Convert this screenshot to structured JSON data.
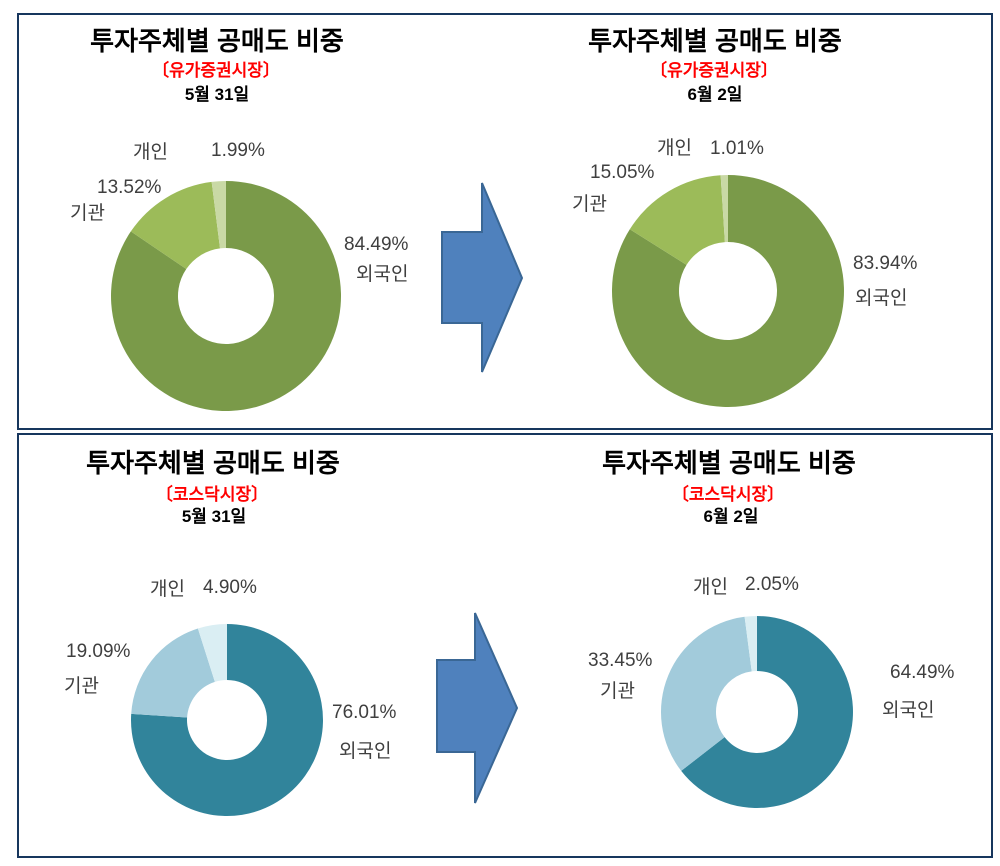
{
  "page": {
    "background": "#FFFFFF",
    "panel_border_color": "#17365D",
    "label_text_color": "#3F3F3F",
    "subtitle_color": "#FF0000"
  },
  "arrow_icon": {
    "name": "right-block-arrow",
    "fill": "#4F81BD",
    "stroke": "#3A6795"
  },
  "chart_data": [
    {
      "type": "pie",
      "variant": "donut",
      "title": "투자주체별 공매도 비중",
      "subtitle": "〔유가증권시장〕",
      "date": "5월 31일",
      "categories": [
        "외국인",
        "기관",
        "개인"
      ],
      "values": [
        84.49,
        13.52,
        1.99
      ],
      "value_labels": [
        "84.49%",
        "13.52%",
        "1.99%"
      ],
      "colors": [
        "#7A9A49",
        "#9CBB59",
        "#C9D9A5"
      ],
      "start_angle_deg": 0,
      "direction": "clockwise",
      "legend": "none"
    },
    {
      "type": "pie",
      "variant": "donut",
      "title": "투자주체별 공매도 비중",
      "subtitle": "〔유가증권시장〕",
      "date": "6월 2일",
      "categories": [
        "외국인",
        "기관",
        "개인"
      ],
      "values": [
        83.94,
        15.05,
        1.01
      ],
      "value_labels": [
        "83.94%",
        "15.05%",
        "1.01%"
      ],
      "colors": [
        "#7A9A49",
        "#9CBB59",
        "#C9D9A5"
      ],
      "start_angle_deg": 0,
      "direction": "clockwise",
      "legend": "none"
    },
    {
      "type": "pie",
      "variant": "donut",
      "title": "투자주체별 공매도 비중",
      "subtitle": "〔코스닥시장〕",
      "date": "5월 31일",
      "categories": [
        "외국인",
        "기관",
        "개인"
      ],
      "values": [
        76.01,
        19.09,
        4.9
      ],
      "value_labels": [
        "76.01%",
        "19.09%",
        "4.90%"
      ],
      "colors": [
        "#31849B",
        "#A2CBDB",
        "#DAEEF3"
      ],
      "start_angle_deg": 0,
      "direction": "clockwise",
      "legend": "none"
    },
    {
      "type": "pie",
      "variant": "donut",
      "title": "투자주체별 공매도 비중",
      "subtitle": "〔코스닥시장〕",
      "date": "6월 2일",
      "categories": [
        "외국인",
        "기관",
        "개인"
      ],
      "values": [
        64.49,
        33.45,
        2.05
      ],
      "value_labels": [
        "64.49%",
        "33.45%",
        "2.05%"
      ],
      "colors": [
        "#31849B",
        "#A2CBDB",
        "#DAEEF3"
      ],
      "start_angle_deg": 0,
      "direction": "clockwise",
      "legend": "none"
    }
  ]
}
